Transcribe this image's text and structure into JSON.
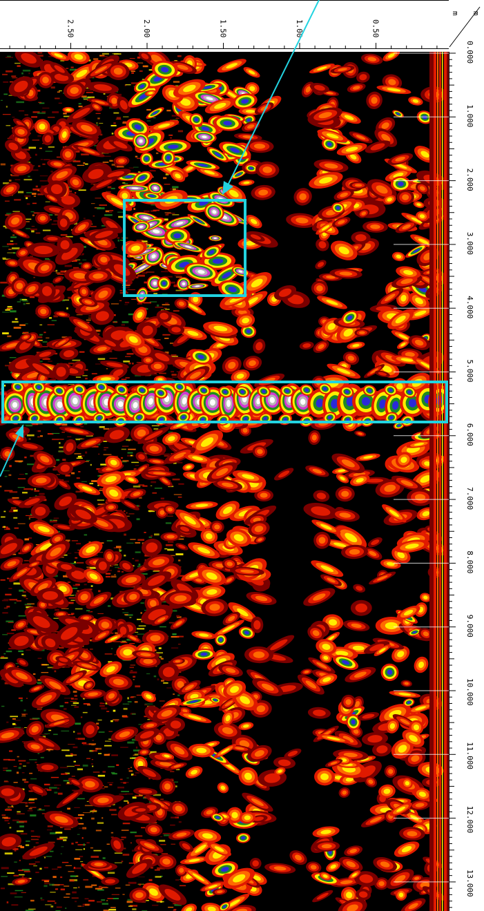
{
  "radargram": {
    "axis_corner": {
      "unit_top": "m",
      "unit_bottom": "m"
    },
    "depth_axis": {
      "unit": "m",
      "labels": [
        "0.00",
        "0.50",
        "1.00",
        "1.50",
        "2.00",
        "2.50"
      ]
    },
    "distance_axis": {
      "unit": "m",
      "labels": [
        "0.000",
        "1.000",
        "2.000",
        "3.000",
        "4.000",
        "5.000",
        "6.000",
        "7.000",
        "8.000",
        "9.000",
        "10.000",
        "11.000",
        "12.000",
        "13.000"
      ]
    },
    "palette": {
      "background": "#000000",
      "dark_red": "#7a0000",
      "red": "#e01a00",
      "orange": "#ff6a00",
      "yellow": "#ffee00",
      "green": "#1f8a1f",
      "blue": "#2a2ad8",
      "magenta": "#d23ad2",
      "gray": "#b7b7b7",
      "white": "#ffffff",
      "highlight": "#22d3e0"
    },
    "annotations": [
      {
        "name": "upper anomaly box"
      },
      {
        "name": "strong reflector band"
      }
    ]
  }
}
